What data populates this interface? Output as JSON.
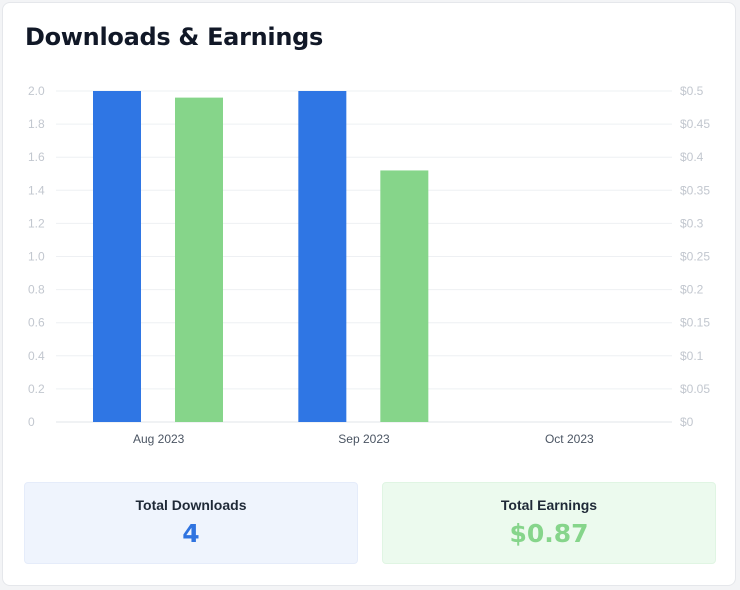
{
  "card": {
    "title": "Downloads & Earnings"
  },
  "chart_data": {
    "type": "bar",
    "title": "Downloads & Earnings",
    "categories": [
      "Aug 2023",
      "Sep 2023",
      "Oct 2023"
    ],
    "series": [
      {
        "name": "Downloads",
        "axis": "left",
        "color": "#2f76e4",
        "values": [
          2,
          2,
          0
        ]
      },
      {
        "name": "Earnings",
        "axis": "right",
        "color": "#86d58a",
        "values": [
          0.49,
          0.38,
          0
        ]
      }
    ],
    "y_left": {
      "ylim": [
        0,
        2
      ],
      "ticks": [
        "0",
        "0.2",
        "0.4",
        "0.6",
        "0.8",
        "1.0",
        "1.2",
        "1.4",
        "1.6",
        "1.8",
        "2.0"
      ]
    },
    "y_right": {
      "ylim": [
        0,
        0.5
      ],
      "ticks": [
        "$0",
        "$0.05",
        "$0.1",
        "$0.15",
        "$0.2",
        "$0.25",
        "$0.3",
        "$0.35",
        "$0.4",
        "$0.45",
        "$0.5"
      ]
    },
    "grid": true,
    "legend": "none"
  },
  "stats": {
    "downloads": {
      "label": "Total Downloads",
      "value": "4"
    },
    "earnings": {
      "label": "Total Earnings",
      "value": "$0.87"
    }
  }
}
